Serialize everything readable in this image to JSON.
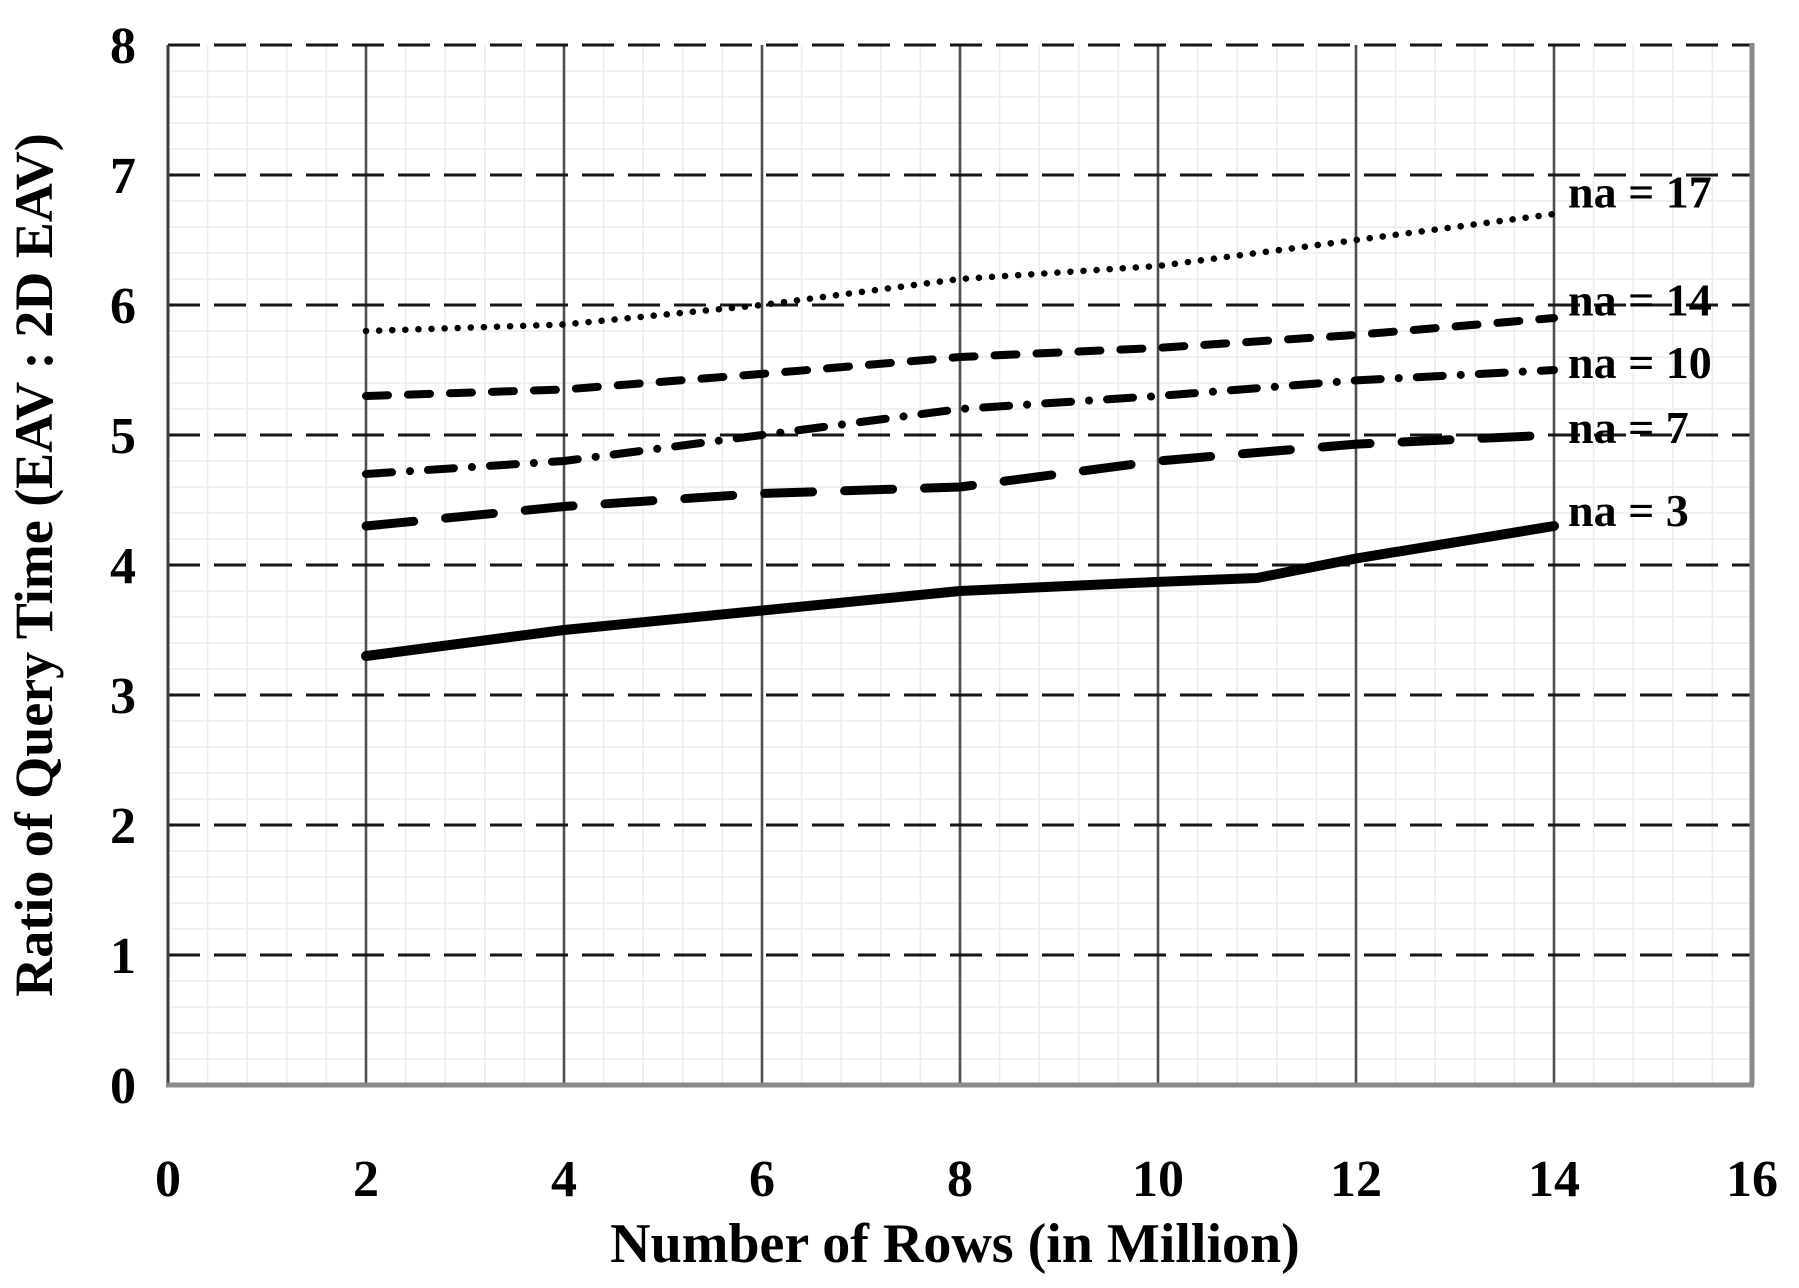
{
  "chart_data": {
    "type": "line",
    "title": "",
    "xlabel": "Number of Rows (in Million)",
    "ylabel": "Ratio of Query Time (EAV : 2D EAV)",
    "xlim": [
      0,
      16
    ],
    "ylim": [
      0,
      8
    ],
    "xticks": [
      0,
      2,
      4,
      6,
      8,
      10,
      12,
      14,
      16
    ],
    "yticks": [
      0,
      1,
      2,
      3,
      4,
      5,
      6,
      7,
      8
    ],
    "grid": {
      "major_x_step": 2,
      "major_y_step": 1,
      "minor_x_step": 0.4,
      "minor_y_step": 0.2,
      "major_horizontal_style": "dashed",
      "major_vertical_style": "solid"
    },
    "legend_position": "right-inside",
    "series": [
      {
        "name": "na17",
        "label": "na = 17",
        "style": "dotted",
        "x": [
          2,
          4,
          6,
          8,
          10,
          12,
          14
        ],
        "y": [
          5.8,
          5.85,
          6.0,
          6.2,
          6.3,
          6.5,
          6.7
        ],
        "label_y": 6.83
      },
      {
        "name": "na14",
        "label": "na = 14",
        "style": "dashed",
        "x": [
          2,
          4,
          6,
          8,
          10,
          12,
          14
        ],
        "y": [
          5.3,
          5.35,
          5.47,
          5.6,
          5.67,
          5.77,
          5.9
        ],
        "label_y": 6.0
      },
      {
        "name": "na10",
        "label": "na = 10",
        "style": "dashdot",
        "x": [
          2,
          4,
          6,
          8,
          10,
          12,
          14
        ],
        "y": [
          4.7,
          4.8,
          5.0,
          5.2,
          5.3,
          5.42,
          5.5
        ],
        "label_y": 5.52
      },
      {
        "name": "na7",
        "label": "na = 7",
        "style": "longdash",
        "x": [
          2,
          4,
          6,
          8,
          10,
          12,
          14
        ],
        "y": [
          4.3,
          4.45,
          4.55,
          4.6,
          4.8,
          4.93,
          5.0
        ],
        "label_y": 5.02
      },
      {
        "name": "na3",
        "label": "na = 3",
        "style": "solid",
        "x": [
          2,
          4,
          6,
          8,
          10,
          11,
          12,
          14
        ],
        "y": [
          3.3,
          3.5,
          3.65,
          3.8,
          3.87,
          3.9,
          4.05,
          4.3
        ],
        "label_y": 4.38
      }
    ],
    "colors": {
      "line": "#000000",
      "major_hgrid": "#161616",
      "major_vgrid": "#4f4f4f",
      "minor_grid": "#ececec",
      "left_border": "#3d3d3d",
      "outer_border": "#8a8a8a",
      "background": "#ffffff",
      "text": "#000000"
    }
  }
}
